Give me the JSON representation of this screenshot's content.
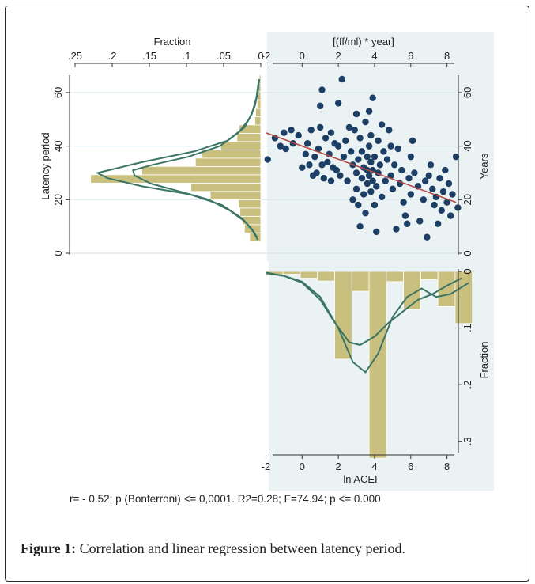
{
  "figure": {
    "stats_text": "r= - 0.52; p (Bonferroni) <= 0,0001. R2=0.28; F=74.94; p <= 0.000",
    "caption_label": "Figure 1:",
    "caption_text": "Correlation and linear regression between latency period."
  },
  "colors": {
    "bar_fill": "#c9bf7f",
    "density_line": "#3a7565",
    "point_fill": "#1d3f66",
    "regression_line": "#b24a44",
    "plot_bg": "#eaf2f3",
    "gridline": "#d8e8ec"
  },
  "chart_data": [
    {
      "id": "latency-histogram",
      "type": "bar",
      "orientation": "horizontal",
      "title": "",
      "xlabel": "Fraction",
      "ylabel": "Latency period",
      "xlim": [
        0.25,
        0
      ],
      "ylim": [
        0,
        65
      ],
      "x_ticks": [
        ".25",
        ".2",
        ".15",
        ".1",
        ".05",
        "0"
      ],
      "y_ticks": [
        "0",
        "20",
        "40",
        "60"
      ],
      "bin_width": 3.1,
      "bins": [
        {
          "start": 4.5,
          "value": 0.015
        },
        {
          "start": 7.6,
          "value": 0.022
        },
        {
          "start": 10.7,
          "value": 0.025
        },
        {
          "start": 13.8,
          "value": 0.028
        },
        {
          "start": 16.9,
          "value": 0.03
        },
        {
          "start": 20.0,
          "value": 0.068
        },
        {
          "start": 23.1,
          "value": 0.094
        },
        {
          "start": 26.2,
          "value": 0.229
        },
        {
          "start": 29.3,
          "value": 0.16
        },
        {
          "start": 32.4,
          "value": 0.088
        },
        {
          "start": 35.5,
          "value": 0.079
        },
        {
          "start": 38.6,
          "value": 0.054
        },
        {
          "start": 41.7,
          "value": 0.032
        },
        {
          "start": 44.8,
          "value": 0.029
        },
        {
          "start": 47.9,
          "value": 0.008
        },
        {
          "start": 51.0,
          "value": 0.007
        },
        {
          "start": 54.1,
          "value": 0.005
        },
        {
          "start": 57.2,
          "value": 0.004
        },
        {
          "start": 60.3,
          "value": 0.003
        },
        {
          "start": 63.4,
          "value": 0.002
        }
      ],
      "density_curves": [
        [
          [
            0.002,
            65
          ],
          [
            0.004,
            60
          ],
          [
            0.008,
            55
          ],
          [
            0.016,
            50
          ],
          [
            0.03,
            45
          ],
          [
            0.055,
            40
          ],
          [
            0.098,
            36
          ],
          [
            0.146,
            33
          ],
          [
            0.172,
            31
          ],
          [
            0.17,
            29
          ],
          [
            0.148,
            26
          ],
          [
            0.108,
            23
          ],
          [
            0.07,
            20
          ],
          [
            0.042,
            16
          ],
          [
            0.022,
            12
          ],
          [
            0.01,
            8
          ],
          [
            0.004,
            5
          ]
        ],
        [
          [
            0.003,
            64
          ],
          [
            0.006,
            58
          ],
          [
            0.012,
            52
          ],
          [
            0.022,
            47
          ],
          [
            0.045,
            42
          ],
          [
            0.09,
            38
          ],
          [
            0.16,
            34
          ],
          [
            0.205,
            31
          ],
          [
            0.22,
            30
          ],
          [
            0.206,
            28
          ],
          [
            0.16,
            25
          ],
          [
            0.096,
            22
          ],
          [
            0.052,
            18
          ],
          [
            0.025,
            13
          ],
          [
            0.012,
            9
          ],
          [
            0.005,
            6
          ]
        ]
      ]
    },
    {
      "id": "scatter-regression",
      "type": "scatter",
      "title": "",
      "xlabel": "[(ff/ml) * year]",
      "ylabel": "Years",
      "xlim": [
        -2.5,
        9.5
      ],
      "ylim": [
        0,
        65
      ],
      "x_ticks": [
        -2,
        0,
        2,
        4,
        6,
        8
      ],
      "y_ticks": [
        0,
        20,
        40,
        60
      ],
      "points": [
        {
          "x": -1.9,
          "y": 35
        },
        {
          "x": -1.5,
          "y": 43
        },
        {
          "x": -1.2,
          "y": 40
        },
        {
          "x": -1.0,
          "y": 45
        },
        {
          "x": -0.9,
          "y": 39
        },
        {
          "x": -0.6,
          "y": 46
        },
        {
          "x": -0.5,
          "y": 41
        },
        {
          "x": -0.2,
          "y": 44
        },
        {
          "x": 0.0,
          "y": 32
        },
        {
          "x": 0.3,
          "y": 41
        },
        {
          "x": 0.4,
          "y": 33
        },
        {
          "x": 0.5,
          "y": 46
        },
        {
          "x": 0.6,
          "y": 29
        },
        {
          "x": 0.7,
          "y": 36
        },
        {
          "x": 0.8,
          "y": 30
        },
        {
          "x": 0.9,
          "y": 39
        },
        {
          "x": 1.0,
          "y": 47
        },
        {
          "x": 1.0,
          "y": 55
        },
        {
          "x": 1.1,
          "y": 61
        },
        {
          "x": 1.1,
          "y": 33
        },
        {
          "x": 1.2,
          "y": 28
        },
        {
          "x": 1.3,
          "y": 43
        },
        {
          "x": 1.4,
          "y": 34
        },
        {
          "x": 1.5,
          "y": 37
        },
        {
          "x": 1.6,
          "y": 45
        },
        {
          "x": 1.7,
          "y": 32
        },
        {
          "x": 1.8,
          "y": 41
        },
        {
          "x": 1.9,
          "y": 31
        },
        {
          "x": 2.0,
          "y": 56
        },
        {
          "x": 2.0,
          "y": 40
        },
        {
          "x": 2.1,
          "y": 29
        },
        {
          "x": 2.2,
          "y": 65
        },
        {
          "x": 2.3,
          "y": 36
        },
        {
          "x": 2.4,
          "y": 42
        },
        {
          "x": 2.5,
          "y": 27
        },
        {
          "x": 2.6,
          "y": 47
        },
        {
          "x": 2.7,
          "y": 38
        },
        {
          "x": 2.8,
          "y": 33
        },
        {
          "x": 2.9,
          "y": 46
        },
        {
          "x": 3.0,
          "y": 30
        },
        {
          "x": 3.0,
          "y": 24
        },
        {
          "x": 3.1,
          "y": 35
        },
        {
          "x": 3.1,
          "y": 18
        },
        {
          "x": 3.2,
          "y": 10
        },
        {
          "x": 3.2,
          "y": 43
        },
        {
          "x": 3.3,
          "y": 28
        },
        {
          "x": 3.3,
          "y": 38
        },
        {
          "x": 3.4,
          "y": 32
        },
        {
          "x": 3.4,
          "y": 22
        },
        {
          "x": 3.5,
          "y": 49
        },
        {
          "x": 3.5,
          "y": 15
        },
        {
          "x": 3.6,
          "y": 31
        },
        {
          "x": 3.6,
          "y": 36
        },
        {
          "x": 3.6,
          "y": 26
        },
        {
          "x": 3.7,
          "y": 29
        },
        {
          "x": 3.7,
          "y": 40
        },
        {
          "x": 3.7,
          "y": 53
        },
        {
          "x": 3.8,
          "y": 23
        },
        {
          "x": 3.8,
          "y": 34
        },
        {
          "x": 3.8,
          "y": 44
        },
        {
          "x": 3.9,
          "y": 27
        },
        {
          "x": 3.9,
          "y": 31
        },
        {
          "x": 3.9,
          "y": 58
        },
        {
          "x": 4.0,
          "y": 18
        },
        {
          "x": 4.0,
          "y": 36
        },
        {
          "x": 4.1,
          "y": 8
        },
        {
          "x": 4.1,
          "y": 25
        },
        {
          "x": 4.2,
          "y": 42
        },
        {
          "x": 4.2,
          "y": 30
        },
        {
          "x": 4.3,
          "y": 33
        },
        {
          "x": 4.4,
          "y": 21
        },
        {
          "x": 4.5,
          "y": 38
        },
        {
          "x": 4.6,
          "y": 27
        },
        {
          "x": 4.7,
          "y": 35
        },
        {
          "x": 4.8,
          "y": 46
        },
        {
          "x": 4.9,
          "y": 29
        },
        {
          "x": 5.0,
          "y": 24
        },
        {
          "x": 5.1,
          "y": 33
        },
        {
          "x": 5.2,
          "y": 9
        },
        {
          "x": 5.3,
          "y": 39
        },
        {
          "x": 5.4,
          "y": 26
        },
        {
          "x": 5.5,
          "y": 31
        },
        {
          "x": 5.6,
          "y": 19
        },
        {
          "x": 5.8,
          "y": 11
        },
        {
          "x": 5.9,
          "y": 28
        },
        {
          "x": 6.0,
          "y": 22
        },
        {
          "x": 6.0,
          "y": 36
        },
        {
          "x": 6.1,
          "y": 42
        },
        {
          "x": 6.2,
          "y": 30
        },
        {
          "x": 6.4,
          "y": 25
        },
        {
          "x": 6.5,
          "y": 12
        },
        {
          "x": 6.7,
          "y": 20
        },
        {
          "x": 6.9,
          "y": 6
        },
        {
          "x": 7.0,
          "y": 29
        },
        {
          "x": 7.1,
          "y": 33
        },
        {
          "x": 7.2,
          "y": 24
        },
        {
          "x": 7.3,
          "y": 18
        },
        {
          "x": 7.4,
          "y": 21
        },
        {
          "x": 7.6,
          "y": 28
        },
        {
          "x": 7.7,
          "y": 16
        },
        {
          "x": 7.8,
          "y": 23
        },
        {
          "x": 7.9,
          "y": 31
        },
        {
          "x": 8.0,
          "y": 19
        },
        {
          "x": 8.1,
          "y": 26
        },
        {
          "x": 8.2,
          "y": 14
        },
        {
          "x": 8.3,
          "y": 22
        },
        {
          "x": 8.5,
          "y": 36
        },
        {
          "x": 8.6,
          "y": 17
        },
        {
          "x": 4.4,
          "y": 48
        },
        {
          "x": 2.8,
          "y": 20
        },
        {
          "x": 5.7,
          "y": 14
        },
        {
          "x": 3.0,
          "y": 52
        },
        {
          "x": 0.2,
          "y": 37
        },
        {
          "x": 6.8,
          "y": 27
        },
        {
          "x": 7.5,
          "y": 11
        },
        {
          "x": 1.6,
          "y": 27
        },
        {
          "x": 4.9,
          "y": 40
        }
      ],
      "regression_line": [
        [
          -2.0,
          45
        ],
        [
          8.5,
          19
        ]
      ]
    },
    {
      "id": "acei-histogram",
      "type": "bar",
      "orientation": "vertical-inverted",
      "title": "",
      "xlabel": "ln ACEI",
      "ylabel": "Fraction",
      "xlim": [
        -2.5,
        9.5
      ],
      "ylim": [
        0,
        0.32
      ],
      "x_ticks": [
        -2,
        0,
        2,
        4,
        6,
        8
      ],
      "y_ticks": [
        "0",
        ".1",
        ".2",
        ".3"
      ],
      "bin_width": 0.95,
      "bins": [
        {
          "start": -2.0,
          "value": 0.006
        },
        {
          "start": -1.05,
          "value": 0.005
        },
        {
          "start": -0.1,
          "value": 0.012
        },
        {
          "start": 0.85,
          "value": 0.017
        },
        {
          "start": 1.8,
          "value": 0.155
        },
        {
          "start": 2.75,
          "value": 0.035
        },
        {
          "start": 3.7,
          "value": 0.33
        },
        {
          "start": 4.65,
          "value": 0.018
        },
        {
          "start": 5.6,
          "value": 0.067
        },
        {
          "start": 6.55,
          "value": 0.014
        },
        {
          "start": 7.5,
          "value": 0.062
        },
        {
          "start": 8.45,
          "value": 0.092
        }
      ],
      "density_curves": [
        [
          [
            -2.0,
            0.002
          ],
          [
            -1.0,
            0.008
          ],
          [
            0.0,
            0.02
          ],
          [
            1.0,
            0.05
          ],
          [
            1.8,
            0.09
          ],
          [
            2.6,
            0.125
          ],
          [
            3.2,
            0.13
          ],
          [
            4.0,
            0.115
          ],
          [
            4.8,
            0.09
          ],
          [
            5.6,
            0.07
          ],
          [
            6.4,
            0.05
          ],
          [
            7.2,
            0.04
          ],
          [
            8.0,
            0.025
          ],
          [
            8.8,
            0.012
          ]
        ],
        [
          [
            -2.0,
            0.003
          ],
          [
            -1.0,
            0.008
          ],
          [
            0.0,
            0.018
          ],
          [
            1.0,
            0.045
          ],
          [
            2.0,
            0.1
          ],
          [
            2.8,
            0.16
          ],
          [
            3.5,
            0.178
          ],
          [
            4.2,
            0.145
          ],
          [
            5.0,
            0.08
          ],
          [
            5.8,
            0.045
          ],
          [
            6.6,
            0.03
          ],
          [
            7.4,
            0.045
          ],
          [
            8.2,
            0.04
          ],
          [
            9.2,
            0.02
          ]
        ]
      ]
    }
  ]
}
